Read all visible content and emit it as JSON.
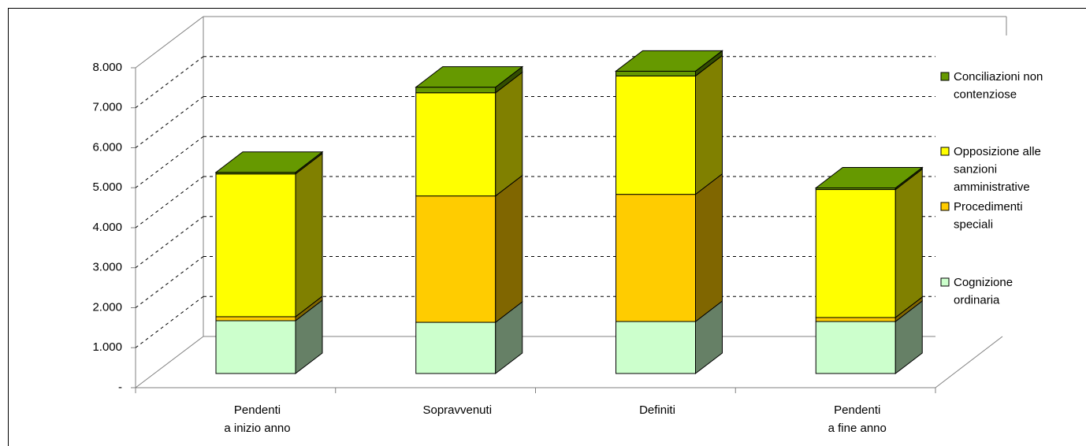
{
  "chart_data": {
    "type": "bar3d_stacked",
    "categories": [
      [
        "Pendenti",
        "a inizio anno"
      ],
      [
        "Sopravvenuti"
      ],
      [
        "Definiti"
      ],
      [
        "Pendenti",
        "a fine anno"
      ]
    ],
    "series": [
      {
        "name": [
          "Cognizione",
          "ordinaria"
        ],
        "color": "#ccffcc",
        "values": [
          1320,
          1280,
          1300,
          1300
        ]
      },
      {
        "name": [
          "Procedimenti",
          "speciali"
        ],
        "color": "#ffcc00",
        "values": [
          100,
          3160,
          3180,
          100
        ]
      },
      {
        "name": [
          "Opposizione alle",
          "sanzioni",
          "amministrative"
        ],
        "color": "#ffff00",
        "values": [
          3570,
          2580,
          2960,
          3200
        ]
      },
      {
        "name": [
          "Conciliazioni non",
          "contenziose"
        ],
        "color": "#669900",
        "values": [
          40,
          140,
          120,
          40
        ]
      }
    ],
    "ylim": [
      0,
      8000
    ],
    "yticks": [
      {
        "value": 0,
        "label": "-"
      },
      {
        "value": 1000,
        "label": "1.000"
      },
      {
        "value": 2000,
        "label": "2.000"
      },
      {
        "value": 3000,
        "label": "3.000"
      },
      {
        "value": 4000,
        "label": "4.000"
      },
      {
        "value": 5000,
        "label": "5.000"
      },
      {
        "value": 6000,
        "label": "6.000"
      },
      {
        "value": 7000,
        "label": "7.000"
      },
      {
        "value": 8000,
        "label": "8.000"
      }
    ],
    "grid": true,
    "legend": "right"
  }
}
